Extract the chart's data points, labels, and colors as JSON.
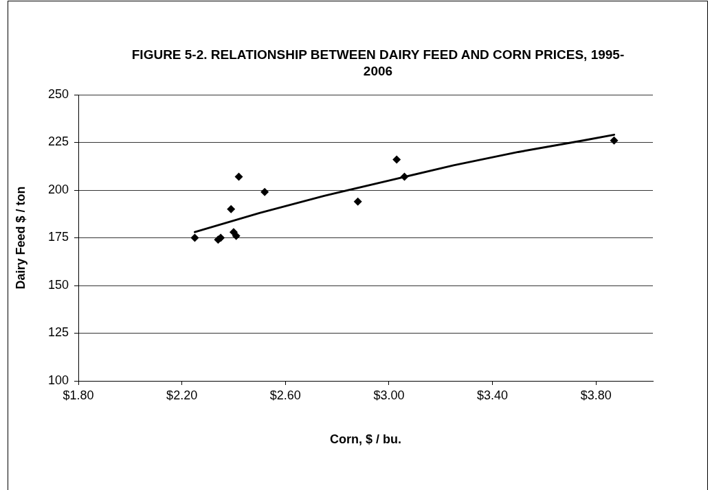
{
  "chart_data": {
    "type": "scatter",
    "title": "FIGURE 5-2. RELATIONSHIP BETWEEN DAIRY FEED AND CORN PRICES, 1995-2006",
    "xlabel": "Corn, $ / bu.",
    "ylabel": "Dairy Feed $ / ton",
    "xlim": [
      1.8,
      4.02
    ],
    "xticks": [
      {
        "value": 1.8,
        "label": "$1.80"
      },
      {
        "value": 2.2,
        "label": "$2.20"
      },
      {
        "value": 2.6,
        "label": "$2.60"
      },
      {
        "value": 3.0,
        "label": "$3.00"
      },
      {
        "value": 3.4,
        "label": "$3.40"
      },
      {
        "value": 3.8,
        "label": "$3.80"
      }
    ],
    "ylim": [
      100,
      250
    ],
    "yticks": [
      100,
      125,
      150,
      175,
      200,
      225,
      250
    ],
    "grid": "y",
    "legend": false,
    "marker": "diamond",
    "series": [
      {
        "color": "#000000",
        "x": [
          2.25,
          2.34,
          2.35,
          2.39,
          2.42,
          2.4,
          2.41,
          2.52,
          2.88,
          3.03,
          3.06,
          3.87
        ],
        "values": [
          175,
          174,
          175,
          190,
          207,
          178,
          176,
          199,
          194,
          216,
          207,
          226
        ]
      },
      {
        "type": "line",
        "color": "#000000",
        "marker": "none",
        "x": [
          2.25,
          2.5,
          2.75,
          3.0,
          3.25,
          3.5,
          3.75,
          3.87
        ],
        "values": [
          178,
          188,
          197,
          205,
          213,
          220,
          226,
          229
        ]
      }
    ]
  }
}
